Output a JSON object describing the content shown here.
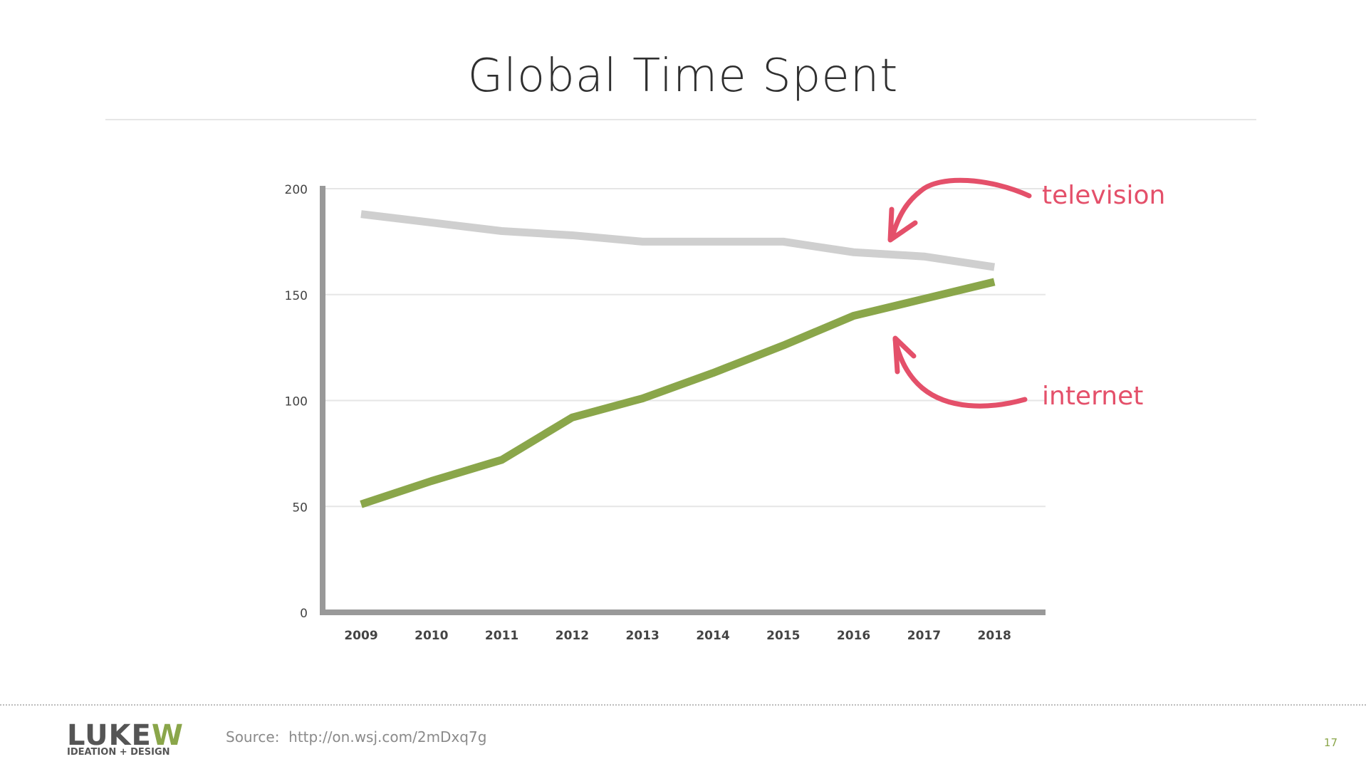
{
  "slide": {
    "title": "Global Time Spent",
    "source_label": "Source:",
    "source_url": "http://on.wsj.com/2mDxq7g",
    "page_number": "17"
  },
  "logo": {
    "wordmark": "LUKEW",
    "tagline": "IDEATION + DESIGN"
  },
  "colors": {
    "television": "#cfcfcf",
    "internet": "#8aa64a",
    "annotation": "#e4506a",
    "axis": "#999999",
    "grid": "#e6e6e6",
    "logo_dark": "#555555",
    "logo_green": "#8aa64a"
  },
  "chart_data": {
    "type": "line",
    "title": "Global Time Spent",
    "x": [
      "2009",
      "2010",
      "2011",
      "2012",
      "2013",
      "2014",
      "2015",
      "2016",
      "2017",
      "2018"
    ],
    "yticks": [
      0,
      50,
      100,
      150,
      200
    ],
    "ylim": [
      0,
      200
    ],
    "grid": true,
    "series": [
      {
        "name": "television",
        "values": [
          188,
          184,
          180,
          178,
          175,
          175,
          175,
          170,
          168,
          163
        ]
      },
      {
        "name": "internet",
        "values": [
          51,
          62,
          72,
          92,
          101,
          113,
          126,
          140,
          148,
          156
        ]
      }
    ],
    "annotations": [
      "television",
      "internet"
    ]
  }
}
